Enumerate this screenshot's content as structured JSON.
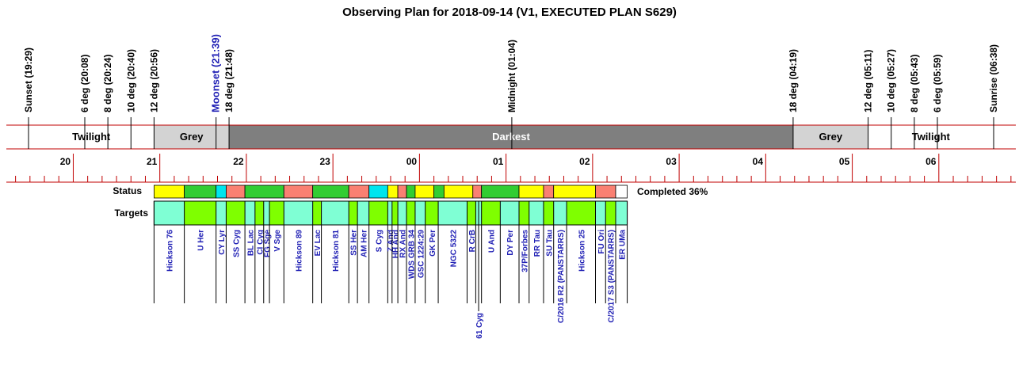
{
  "chart_data": {
    "type": "timeline",
    "title": "Observing Plan for 2018-09-14 (V1, EXECUTED PLAN S629)",
    "events": [
      {
        "label": "Sunset (19:29)",
        "time": "19:29"
      },
      {
        "label": "6 deg (20:08)",
        "time": "20:08"
      },
      {
        "label": "8 deg (20:24)",
        "time": "20:24"
      },
      {
        "label": "10 deg (20:40)",
        "time": "20:40"
      },
      {
        "label": "12 deg (20:56)",
        "time": "20:56"
      },
      {
        "label": "Moonset (21:39)",
        "time": "21:39",
        "kind": "moon"
      },
      {
        "label": "18 deg (21:48)",
        "time": "21:48"
      },
      {
        "label": "Midnight (01:04)",
        "time": "01:04"
      },
      {
        "label": "18 deg (04:19)",
        "time": "04:19"
      },
      {
        "label": "12 deg (05:11)",
        "time": "05:11"
      },
      {
        "label": "10 deg (05:27)",
        "time": "05:27"
      },
      {
        "label": "8 deg (05:43)",
        "time": "05:43"
      },
      {
        "label": "6 deg (05:59)",
        "time": "05:59"
      },
      {
        "label": "Sunrise (06:38)",
        "time": "06:38"
      }
    ],
    "bands": [
      {
        "label": "Twilight",
        "start": "19:29",
        "end": "20:56",
        "color": "#ffffff",
        "text_color": "#000000"
      },
      {
        "label": "Grey",
        "start": "20:56",
        "end": "21:48",
        "color": "#d3d3d3",
        "text_color": "#000000"
      },
      {
        "label": "Darkest",
        "start": "21:48",
        "end": "04:19",
        "color": "#7f7f7f",
        "text_color": "#ffffff"
      },
      {
        "label": "Grey",
        "start": "04:19",
        "end": "05:11",
        "color": "#d3d3d3",
        "text_color": "#000000"
      },
      {
        "label": "Twilight",
        "start": "05:11",
        "end": "06:38",
        "color": "#ffffff",
        "text_color": "#000000"
      }
    ],
    "axis": {
      "start": "19:29",
      "end": "06:38",
      "hour_ticks": [
        "20",
        "21",
        "22",
        "23",
        "00",
        "01",
        "02",
        "03",
        "04",
        "05",
        "06"
      ]
    },
    "status_row": {
      "label": "Status",
      "completed_text": "Completed 36%",
      "segments": [
        {
          "start": "20:56",
          "end": "21:17",
          "color": "#ffff00"
        },
        {
          "start": "21:17",
          "end": "21:39",
          "color": "#32cd32"
        },
        {
          "start": "21:39",
          "end": "21:46",
          "color": "#00e5ee"
        },
        {
          "start": "21:46",
          "end": "21:59",
          "color": "#fa8072"
        },
        {
          "start": "21:59",
          "end": "22:26",
          "color": "#32cd32"
        },
        {
          "start": "22:26",
          "end": "22:46",
          "color": "#fa8072"
        },
        {
          "start": "22:46",
          "end": "23:11",
          "color": "#32cd32"
        },
        {
          "start": "23:11",
          "end": "23:25",
          "color": "#fa8072"
        },
        {
          "start": "23:25",
          "end": "23:38",
          "color": "#00e5ee"
        },
        {
          "start": "23:38",
          "end": "23:45",
          "color": "#ffff00"
        },
        {
          "start": "23:45",
          "end": "23:51",
          "color": "#fa8072"
        },
        {
          "start": "23:51",
          "end": "23:57",
          "color": "#32cd32"
        },
        {
          "start": "23:57",
          "end": "00:10",
          "color": "#ffff00"
        },
        {
          "start": "00:10",
          "end": "00:17",
          "color": "#32cd32"
        },
        {
          "start": "00:17",
          "end": "00:37",
          "color": "#ffff00"
        },
        {
          "start": "00:37",
          "end": "00:43",
          "color": "#fa8072"
        },
        {
          "start": "00:43",
          "end": "01:09",
          "color": "#32cd32"
        },
        {
          "start": "01:09",
          "end": "01:26",
          "color": "#ffff00"
        },
        {
          "start": "01:26",
          "end": "01:33",
          "color": "#fa8072"
        },
        {
          "start": "01:33",
          "end": "02:02",
          "color": "#ffff00"
        },
        {
          "start": "02:02",
          "end": "02:16",
          "color": "#fa8072"
        },
        {
          "start": "02:16",
          "end": "02:24",
          "color": "#ffffff"
        }
      ]
    },
    "targets_row": {
      "label": "Targets",
      "targets": [
        {
          "name": "Hickson 76",
          "start": "20:56",
          "end": "21:17",
          "color": "#7fffd4"
        },
        {
          "name": "U Her",
          "start": "21:17",
          "end": "21:39",
          "color": "#7fff00"
        },
        {
          "name": "CY Lyr",
          "start": "21:39",
          "end": "21:46",
          "color": "#7fffd4"
        },
        {
          "name": "SS Cyg",
          "start": "21:46",
          "end": "21:59",
          "color": "#7fff00"
        },
        {
          "name": "BL Lac",
          "start": "21:59",
          "end": "22:06",
          "color": "#7fffd4"
        },
        {
          "name": "CI Cyg",
          "start": "22:06",
          "end": "22:12",
          "color": "#7fff00"
        },
        {
          "name": "FG Sge",
          "start": "22:12",
          "end": "22:16",
          "color": "#7fffd4"
        },
        {
          "name": "V Sge",
          "start": "22:16",
          "end": "22:26",
          "color": "#7fff00"
        },
        {
          "name": "Hickson 89",
          "start": "22:26",
          "end": "22:46",
          "color": "#7fffd4"
        },
        {
          "name": "EV Lac",
          "start": "22:46",
          "end": "22:52",
          "color": "#7fff00"
        },
        {
          "name": "Hickson 81",
          "start": "22:52",
          "end": "23:11",
          "color": "#7fffd4"
        },
        {
          "name": "SS Her",
          "start": "23:11",
          "end": "23:17",
          "color": "#7fff00"
        },
        {
          "name": "AM Her",
          "start": "23:17",
          "end": "23:25",
          "color": "#7fffd4"
        },
        {
          "name": "S Cyg",
          "start": "23:25",
          "end": "23:38",
          "color": "#7fff00"
        },
        {
          "name": "Z And",
          "start": "23:38",
          "end": "23:41",
          "color": "#7fffd4"
        },
        {
          "name": "HH And",
          "start": "23:41",
          "end": "23:45",
          "color": "#7fff00"
        },
        {
          "name": "RX And",
          "start": "23:45",
          "end": "23:51",
          "color": "#7fffd4"
        },
        {
          "name": "WDS GRB 34",
          "start": "23:51",
          "end": "23:57",
          "color": "#7fff00"
        },
        {
          "name": "GSC 1224:29",
          "start": "23:57",
          "end": "00:04",
          "color": "#7fffd4"
        },
        {
          "name": "GK Per",
          "start": "00:04",
          "end": "00:13",
          "color": "#7fff00"
        },
        {
          "name": "NGC 5322",
          "start": "00:13",
          "end": "00:33",
          "color": "#7fffd4"
        },
        {
          "name": "R CrB",
          "start": "00:33",
          "end": "00:39",
          "color": "#7fff00"
        },
        {
          "name": "61 Cyg",
          "start": "00:39",
          "end": "00:43",
          "color": "#7fffd4",
          "label_position": "below"
        },
        {
          "name": "U And",
          "start": "00:43",
          "end": "00:56",
          "color": "#7fff00"
        },
        {
          "name": "DY Per",
          "start": "00:56",
          "end": "01:09",
          "color": "#7fffd4"
        },
        {
          "name": "37P/Forbes",
          "start": "01:09",
          "end": "01:16",
          "color": "#7fff00"
        },
        {
          "name": "RR Tau",
          "start": "01:16",
          "end": "01:26",
          "color": "#7fffd4"
        },
        {
          "name": "SU Tau",
          "start": "01:26",
          "end": "01:33",
          "color": "#7fff00"
        },
        {
          "name": "C/2016 R2 (PANSTARRS)",
          "start": "01:33",
          "end": "01:42",
          "color": "#7fffd4"
        },
        {
          "name": "Hickson 25",
          "start": "01:42",
          "end": "02:02",
          "color": "#7fff00"
        },
        {
          "name": "FU Ori",
          "start": "02:02",
          "end": "02:09",
          "color": "#7fffd4"
        },
        {
          "name": "C/2017 S3 (PANSTARRS)",
          "start": "02:09",
          "end": "02:16",
          "color": "#7fff00"
        },
        {
          "name": "ER UMa",
          "start": "02:16",
          "end": "02:24",
          "color": "#7fffd4"
        }
      ]
    }
  }
}
